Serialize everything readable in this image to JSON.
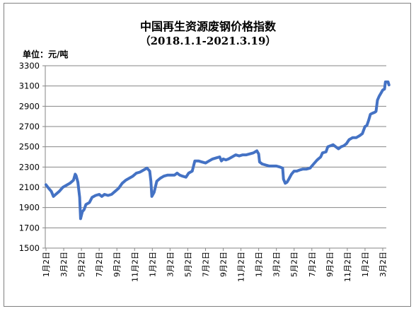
{
  "chart_data": {
    "type": "line",
    "title": "中国再生资源废钢价格指数",
    "subtitle": "（2018.1.1-2021.3.19）",
    "unit_label": "单位：元/吨",
    "ylim": [
      1500,
      3300
    ],
    "y_ticks": [
      1500,
      1700,
      1900,
      2100,
      2300,
      2500,
      2700,
      2900,
      3100,
      3300
    ],
    "grid": "horizontal",
    "line_color": "#4472C4",
    "x_tick_labels": [
      "1月2日",
      "3月2日",
      "5月2日",
      "7月2日",
      "9月2日",
      "11月2日",
      "1月2日",
      "3月2日",
      "5月2日",
      "7月2日",
      "9月2日",
      "11月2日",
      "1月2日",
      "3月2日",
      "5月2日",
      "7月2日",
      "9月2日",
      "11月2日",
      "1月2日",
      "3月2日"
    ],
    "series": [
      {
        "points": [
          [
            0.0,
            2125
          ],
          [
            0.15,
            2090
          ],
          [
            0.3,
            2060
          ],
          [
            0.42,
            2010
          ],
          [
            0.55,
            2030
          ],
          [
            0.75,
            2060
          ],
          [
            0.95,
            2100
          ],
          [
            1.15,
            2120
          ],
          [
            1.35,
            2140
          ],
          [
            1.55,
            2170
          ],
          [
            1.65,
            2230
          ],
          [
            1.7,
            2215
          ],
          [
            1.8,
            2150
          ],
          [
            1.9,
            2000
          ],
          [
            1.95,
            1790
          ],
          [
            2.05,
            1860
          ],
          [
            2.15,
            1880
          ],
          [
            2.25,
            1930
          ],
          [
            2.45,
            1950
          ],
          [
            2.6,
            2000
          ],
          [
            2.8,
            2020
          ],
          [
            3.0,
            2030
          ],
          [
            3.15,
            2010
          ],
          [
            3.3,
            2030
          ],
          [
            3.5,
            2020
          ],
          [
            3.7,
            2030
          ],
          [
            3.9,
            2060
          ],
          [
            4.1,
            2090
          ],
          [
            4.3,
            2140
          ],
          [
            4.5,
            2170
          ],
          [
            4.7,
            2190
          ],
          [
            4.9,
            2210
          ],
          [
            5.1,
            2240
          ],
          [
            5.3,
            2250
          ],
          [
            5.5,
            2270
          ],
          [
            5.7,
            2290
          ],
          [
            5.85,
            2260
          ],
          [
            5.92,
            2160
          ],
          [
            5.97,
            2010
          ],
          [
            6.1,
            2050
          ],
          [
            6.25,
            2160
          ],
          [
            6.45,
            2190
          ],
          [
            6.65,
            2210
          ],
          [
            6.85,
            2220
          ],
          [
            7.05,
            2220
          ],
          [
            7.25,
            2220
          ],
          [
            7.4,
            2240
          ],
          [
            7.55,
            2220
          ],
          [
            7.7,
            2210
          ],
          [
            7.9,
            2200
          ],
          [
            8.05,
            2240
          ],
          [
            8.25,
            2260
          ],
          [
            8.4,
            2360
          ],
          [
            8.6,
            2360
          ],
          [
            8.8,
            2350
          ],
          [
            9.0,
            2340
          ],
          [
            9.2,
            2360
          ],
          [
            9.4,
            2380
          ],
          [
            9.6,
            2390
          ],
          [
            9.8,
            2400
          ],
          [
            9.9,
            2360
          ],
          [
            10.0,
            2380
          ],
          [
            10.15,
            2370
          ],
          [
            10.3,
            2380
          ],
          [
            10.5,
            2400
          ],
          [
            10.7,
            2420
          ],
          [
            10.9,
            2410
          ],
          [
            11.1,
            2420
          ],
          [
            11.3,
            2420
          ],
          [
            11.5,
            2430
          ],
          [
            11.7,
            2440
          ],
          [
            11.9,
            2460
          ],
          [
            12.0,
            2430
          ],
          [
            12.05,
            2350
          ],
          [
            12.2,
            2330
          ],
          [
            12.4,
            2320
          ],
          [
            12.6,
            2310
          ],
          [
            12.8,
            2310
          ],
          [
            13.0,
            2310
          ],
          [
            13.2,
            2300
          ],
          [
            13.35,
            2290
          ],
          [
            13.4,
            2180
          ],
          [
            13.5,
            2140
          ],
          [
            13.6,
            2150
          ],
          [
            13.7,
            2180
          ],
          [
            13.85,
            2230
          ],
          [
            14.0,
            2260
          ],
          [
            14.15,
            2260
          ],
          [
            14.3,
            2270
          ],
          [
            14.5,
            2280
          ],
          [
            14.7,
            2280
          ],
          [
            14.9,
            2290
          ],
          [
            15.1,
            2330
          ],
          [
            15.3,
            2370
          ],
          [
            15.5,
            2400
          ],
          [
            15.6,
            2440
          ],
          [
            15.8,
            2450
          ],
          [
            15.9,
            2500
          ],
          [
            16.05,
            2510
          ],
          [
            16.2,
            2520
          ],
          [
            16.35,
            2500
          ],
          [
            16.5,
            2480
          ],
          [
            16.65,
            2500
          ],
          [
            16.8,
            2510
          ],
          [
            16.95,
            2530
          ],
          [
            17.1,
            2570
          ],
          [
            17.3,
            2590
          ],
          [
            17.5,
            2590
          ],
          [
            17.7,
            2610
          ],
          [
            17.85,
            2630
          ],
          [
            18.0,
            2700
          ],
          [
            18.1,
            2710
          ],
          [
            18.2,
            2760
          ],
          [
            18.3,
            2820
          ],
          [
            18.4,
            2830
          ],
          [
            18.55,
            2840
          ],
          [
            18.62,
            2850
          ],
          [
            18.7,
            2960
          ],
          [
            18.8,
            3000
          ],
          [
            18.9,
            3030
          ],
          [
            19.0,
            3060
          ],
          [
            19.1,
            3070
          ],
          [
            19.15,
            3140
          ],
          [
            19.3,
            3140
          ],
          [
            19.35,
            3110
          ]
        ]
      }
    ]
  }
}
